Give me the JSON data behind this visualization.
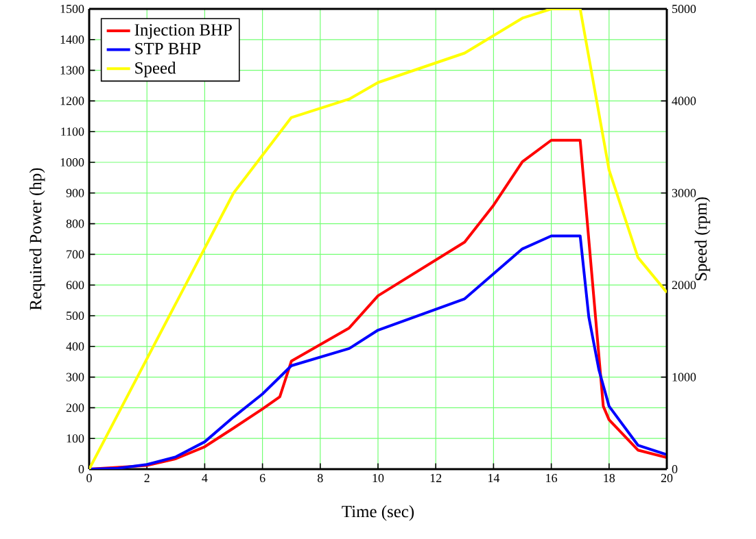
{
  "chart_data": {
    "type": "line",
    "xlabel": "Time (sec)",
    "ylabel": "Required Power (hp)",
    "y2label": "Speed (rpm)",
    "series": [
      {
        "name": "Injection BHP",
        "color": "#ff0000",
        "x": [
          0,
          2,
          3,
          4,
          5,
          6,
          6.6,
          7,
          9,
          10,
          13,
          14,
          15,
          16,
          17,
          17.8,
          18,
          19,
          20
        ],
        "values": [
          0,
          12,
          34,
          73,
          134,
          196,
          236,
          352,
          460,
          565,
          740,
          860,
          1002,
          1072,
          1072,
          205,
          161,
          62,
          38
        ]
      },
      {
        "name": "STP BHP",
        "color": "#0000ff",
        "x": [
          0,
          1,
          2,
          3,
          4,
          5,
          6,
          7,
          9,
          10,
          13,
          15,
          16,
          17,
          17.3,
          17.65,
          18,
          19,
          20
        ],
        "values": [
          0,
          3,
          15,
          40,
          89,
          170,
          245,
          337,
          393,
          453,
          555,
          718,
          760,
          760,
          495,
          323,
          205,
          78,
          47
        ]
      },
      {
        "name": "Speed",
        "color": "#ffff00",
        "axis": "y2",
        "x": [
          0,
          5,
          7,
          9,
          10,
          13,
          15,
          16,
          17,
          18,
          19,
          20
        ],
        "values": [
          0,
          3000,
          3820,
          4020,
          4200,
          4520,
          4900,
          5000,
          5000,
          3250,
          2300,
          1920
        ]
      }
    ],
    "xlim": [
      0,
      20
    ],
    "xticks": [
      0,
      2,
      4,
      6,
      8,
      10,
      12,
      14,
      16,
      18,
      20
    ],
    "ylim": [
      0,
      1500
    ],
    "yticks": [
      0,
      100,
      200,
      300,
      400,
      500,
      600,
      700,
      800,
      900,
      1000,
      1100,
      1200,
      1300,
      1400,
      1500
    ],
    "y2lim": [
      0,
      5000
    ],
    "y2ticks": [
      0,
      1000,
      2000,
      3000,
      4000,
      5000
    ],
    "grid": true,
    "legend": "top left"
  }
}
